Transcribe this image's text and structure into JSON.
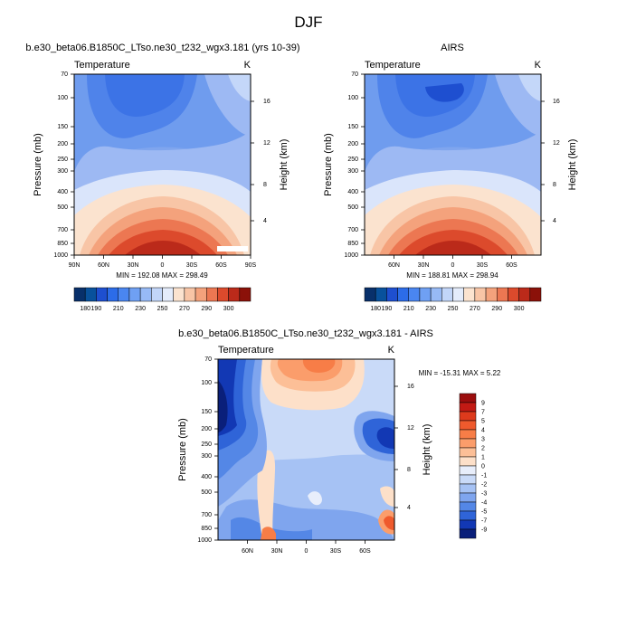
{
  "figure": {
    "title": "DJF"
  },
  "chart_data": [
    {
      "type": "heatmap",
      "panel": "model",
      "title": "b.e30_beta06.B1850C_LTso.ne30_t232_wgx3.181 (yrs 10-39)",
      "left_label": "Temperature",
      "right_label": "K",
      "ylabel": "Pressure (mb)",
      "y2label": "Height (km)",
      "pressure_ticks": [
        70,
        100,
        150,
        200,
        250,
        300,
        400,
        500,
        700,
        850,
        1000
      ],
      "height_ticks": [
        4,
        8,
        12,
        16
      ],
      "x_ticks": [
        "90N",
        "60N",
        "30N",
        "0",
        "30S",
        "60S",
        "90S"
      ],
      "xlim": [
        90,
        -90
      ],
      "ylim_mb": [
        1000,
        70
      ],
      "min_max_label": "MIN = 192.08   MAX = 298.49",
      "min": 192.08,
      "max": 298.49,
      "colorbar": {
        "orientation": "horizontal",
        "levels": [
          180,
          185,
          190,
          200,
          210,
          220,
          230,
          240,
          250,
          260,
          270,
          280,
          290,
          295,
          300
        ],
        "labels": [
          "180",
          "190",
          "210",
          "230",
          "250",
          "270",
          "290",
          "300"
        ],
        "colors": [
          "#08306b",
          "#08519c",
          "#1e4fd0",
          "#2c6ce8",
          "#4a86f0",
          "#6fa0f3",
          "#97baf6",
          "#c2d6f9",
          "#e4ecfb",
          "#fbe3cf",
          "#f8c5a6",
          "#f4a27c",
          "#ec7752",
          "#dc4a2c",
          "#bb2a1a",
          "#8b1109"
        ]
      }
    },
    {
      "type": "heatmap",
      "panel": "observations",
      "title": "AIRS",
      "left_label": "Temperature",
      "right_label": "K",
      "ylabel": "Pressure (mb)",
      "y2label": "Height (km)",
      "pressure_ticks": [
        70,
        100,
        150,
        200,
        250,
        300,
        400,
        500,
        700,
        850,
        1000
      ],
      "height_ticks": [
        4,
        8,
        12,
        16
      ],
      "x_ticks": [
        "60N",
        "30N",
        "0",
        "30S",
        "60S"
      ],
      "xlim": [
        90,
        -90
      ],
      "ylim_mb": [
        1000,
        70
      ],
      "min_max_label": "MIN = 188.81   MAX = 298.94",
      "min": 188.81,
      "max": 298.94,
      "colorbar": {
        "orientation": "horizontal",
        "levels": [
          180,
          185,
          190,
          200,
          210,
          220,
          230,
          240,
          250,
          260,
          270,
          280,
          290,
          295,
          300
        ],
        "labels": [
          "180",
          "190",
          "210",
          "230",
          "250",
          "270",
          "290",
          "300"
        ],
        "colors": [
          "#08306b",
          "#08519c",
          "#1e4fd0",
          "#2c6ce8",
          "#4a86f0",
          "#6fa0f3",
          "#97baf6",
          "#c2d6f9",
          "#e4ecfb",
          "#fbe3cf",
          "#f8c5a6",
          "#f4a27c",
          "#ec7752",
          "#dc4a2c",
          "#bb2a1a",
          "#8b1109"
        ]
      }
    },
    {
      "type": "heatmap",
      "panel": "difference",
      "title": "b.e30_beta06.B1850C_LTso.ne30_t232_wgx3.181 - AIRS",
      "left_label": "Temperature",
      "right_label": "K",
      "ylabel": "Pressure (mb)",
      "y2label": "Height (km)",
      "pressure_ticks": [
        70,
        100,
        150,
        200,
        250,
        300,
        400,
        500,
        700,
        850,
        1000
      ],
      "height_ticks": [
        4,
        8,
        12,
        16
      ],
      "x_ticks": [
        "60N",
        "30N",
        "0",
        "30S",
        "60S"
      ],
      "xlim": [
        90,
        -90
      ],
      "ylim_mb": [
        1000,
        70
      ],
      "min_max_label": "MIN = -15.31   MAX =   5.22",
      "min": -15.31,
      "max": 5.22,
      "colorbar": {
        "orientation": "vertical",
        "labels": [
          "9",
          "7",
          "5",
          "4",
          "3",
          "2",
          "1",
          "0",
          "-1",
          "-2",
          "-3",
          "-4",
          "-5",
          "-7",
          "-9"
        ],
        "colors": [
          "#9b0d0d",
          "#c21a14",
          "#dd3a1c",
          "#ef5a2d",
          "#f77d47",
          "#fb9d6b",
          "#fcbf97",
          "#fde0c9",
          "#e8eefb",
          "#c9daf8",
          "#a6c2f4",
          "#7fa5ee",
          "#5487e6",
          "#2f64d8",
          "#1238b4",
          "#0a1f7a"
        ]
      }
    }
  ]
}
